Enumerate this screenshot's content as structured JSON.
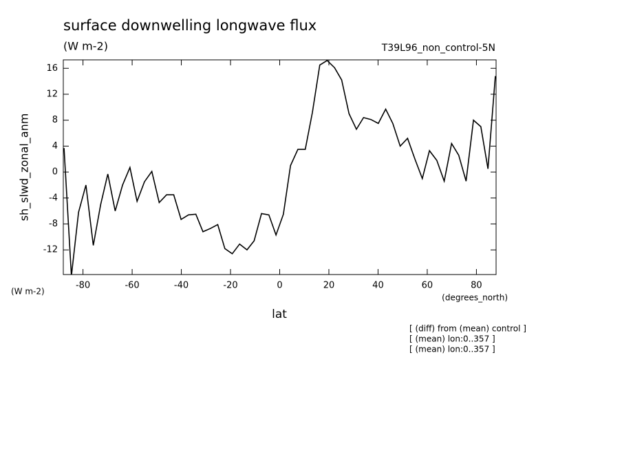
{
  "chart_data": {
    "type": "line",
    "title": "surface downwelling longwave flux",
    "subtitle": "(W m-2)",
    "dataset": "T39L96_non_control-5N",
    "ylabel": "sh_slwd_zonal_anm",
    "yunits": "(W m-2)",
    "xlabel": "lat",
    "xunits": "(degrees_north)",
    "annotations": [
      "[ (diff) from (mean) control ]",
      "[ (mean) lon:0..357 ]",
      "[ (mean) lon:0..357 ]"
    ],
    "color": "#000000",
    "xlim": [
      -88,
      88
    ],
    "ylim": [
      -15.8,
      17.3
    ],
    "xticks": [
      -80,
      -60,
      -40,
      -20,
      0,
      20,
      40,
      60,
      80
    ],
    "yticks": [
      -12,
      -8,
      -4,
      0,
      4,
      8,
      12,
      16
    ],
    "x": [
      -87.7,
      -84.7,
      -81.8,
      -78.8,
      -75.8,
      -72.8,
      -69.9,
      -66.9,
      -63.9,
      -60.9,
      -58,
      -55,
      -52,
      -49,
      -46,
      -43.1,
      -40.1,
      -37.1,
      -34.1,
      -31.2,
      -28.2,
      -25.2,
      -22.3,
      -19.3,
      -16.3,
      -13.3,
      -10.4,
      -7.4,
      -4.4,
      -1.5,
      1.5,
      4.4,
      7.4,
      10.4,
      13.3,
      16.3,
      19.3,
      22.3,
      25.2,
      28.2,
      31.2,
      34.1,
      37.1,
      40.1,
      43.1,
      46,
      49,
      52,
      55,
      58,
      60.9,
      63.9,
      66.9,
      69.9,
      72.8,
      75.8,
      78.8,
      81.8,
      84.7,
      87.7
    ],
    "values": [
      3.7,
      -16,
      -6.2,
      -2,
      -11.3,
      -5,
      -0.3,
      -6,
      -2,
      0.7,
      -4.5,
      -1.5,
      0.1,
      -4.7,
      -3.5,
      -3.5,
      -7.3,
      -6.6,
      -6.5,
      -9.2,
      -8.7,
      -8.1,
      -11.8,
      -12.6,
      -11.1,
      -12,
      -10.6,
      -6.4,
      -6.6,
      -9.7,
      -6.5,
      1,
      3.5,
      3.5,
      9.2,
      16.5,
      17.2,
      16.1,
      14.2,
      9,
      6.6,
      8.4,
      8.1,
      7.5,
      9.7,
      7.5,
      4,
      5.2,
      2,
      -1,
      3.3,
      1.8,
      -1.4,
      4.4,
      2.6,
      -1.4,
      8,
      7,
      0.5,
      14.8
    ]
  }
}
